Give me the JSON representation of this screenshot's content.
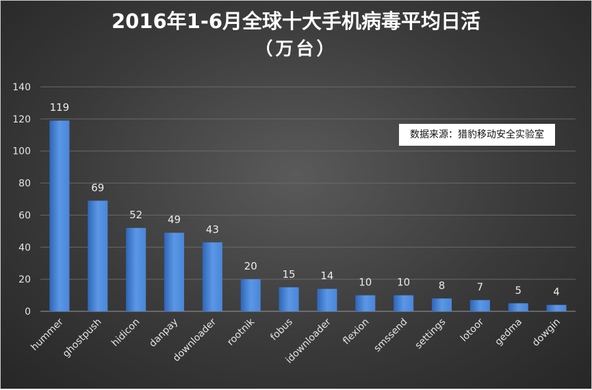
{
  "chart_data": {
    "type": "bar",
    "title": "2016年1-6月全球十大手机病毒平均日活",
    "subtitle": "（万台）",
    "source_note": "数据来源：猎豹移动安全实验室",
    "categories": [
      "hummer",
      "ghostpush",
      "hidicon",
      "danpay",
      "downloader",
      "rootnik",
      "fobus",
      "idownloader",
      "flexion",
      "smssend",
      "settings",
      "lotoor",
      "gedma",
      "dowgin"
    ],
    "values": [
      119,
      69,
      52,
      49,
      43,
      20,
      15,
      14,
      10,
      10,
      8,
      7,
      5,
      4
    ],
    "ylim": [
      0,
      140
    ],
    "yticks": [
      0,
      20,
      40,
      60,
      80,
      100,
      120,
      140
    ],
    "grid": true,
    "bar_color": "#4a86d8",
    "bar_color_light": "#5b97e6",
    "bar_color_dark": "#2f66b8"
  }
}
